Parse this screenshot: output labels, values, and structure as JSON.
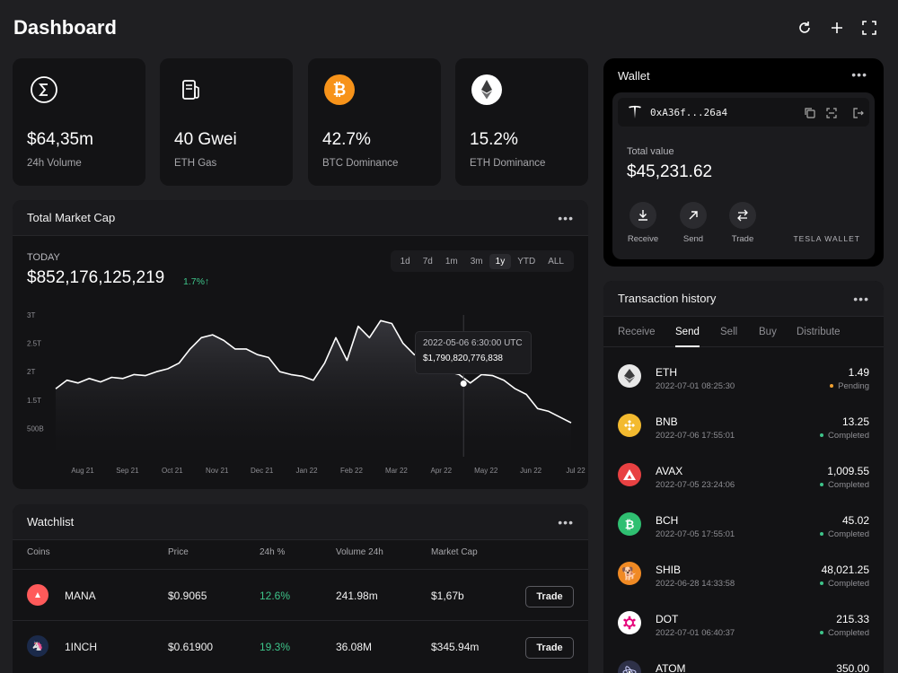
{
  "page": {
    "title": "Dashboard"
  },
  "top_actions": [
    {
      "name": "refresh-icon"
    },
    {
      "name": "plus-icon"
    },
    {
      "name": "fullscreen-icon"
    }
  ],
  "stats": [
    {
      "value": "$64,35m",
      "label": "24h Volume",
      "icon": "sigma-icon"
    },
    {
      "value": "40 Gwei",
      "label": "ETH Gas",
      "icon": "fuel-pump-icon"
    },
    {
      "value": "42.7%",
      "label": "BTC Dominance",
      "icon": "bitcoin-icon",
      "color": "#f7931a"
    },
    {
      "value": "15.2%",
      "label": "ETH Dominance",
      "icon": "ethereum-icon",
      "color": "#ffffff"
    }
  ],
  "market_cap": {
    "title": "Total Market Cap",
    "today_label": "TODAY",
    "value": "$852,176,125,219",
    "change": "1.7%↑",
    "ranges": [
      "1d",
      "7d",
      "1m",
      "3m",
      "1y",
      "YTD",
      "ALL"
    ],
    "active_range": "1y",
    "tooltip": {
      "date": "2022-05-06 6:30:00 UTC",
      "value": "$1,790,820,776,838"
    }
  },
  "chart_data": {
    "type": "area",
    "title": "",
    "xlabel": "",
    "ylabel": "",
    "y_ticks": [
      "3T",
      "2.5T",
      "2T",
      "1.5T",
      "500B"
    ],
    "x_ticks": [
      "Aug 21",
      "Sep 21",
      "Oct 21",
      "Nov 21",
      "Dec 21",
      "Jan 22",
      "Feb 22",
      "Mar 22",
      "Apr 22",
      "May 22",
      "Jun 22",
      "Jul 22"
    ],
    "ylim": [
      0.5,
      3.0
    ],
    "x": [
      0,
      0.25,
      0.5,
      0.75,
      1,
      1.25,
      1.5,
      1.75,
      2,
      2.25,
      2.5,
      2.75,
      3,
      3.25,
      3.5,
      3.75,
      4,
      4.25,
      4.5,
      4.75,
      5,
      5.25,
      5.5,
      5.75,
      6,
      6.25,
      6.5,
      6.75,
      7,
      7.25,
      7.5,
      7.75,
      8,
      8.25,
      8.5,
      8.75,
      9,
      9.25,
      9.5,
      9.75,
      10,
      10.25,
      10.5,
      10.75,
      11,
      11.25,
      11.5
    ],
    "values": [
      1.7,
      1.85,
      1.8,
      1.88,
      1.82,
      1.9,
      1.88,
      1.95,
      1.93,
      2.0,
      2.05,
      2.15,
      2.4,
      2.6,
      2.65,
      2.55,
      2.4,
      2.4,
      2.3,
      2.25,
      2.0,
      1.95,
      1.92,
      1.85,
      2.15,
      2.6,
      2.2,
      2.8,
      2.6,
      2.9,
      2.85,
      2.5,
      2.3,
      2.25,
      2.35,
      2.0,
      1.95,
      1.8,
      1.95,
      1.93,
      1.85,
      1.7,
      1.6,
      1.35,
      1.3,
      1.2,
      1.1
    ],
    "highlight": {
      "x": 9.1,
      "y": 1.79
    },
    "grid": false,
    "legend": "none"
  },
  "watchlist": {
    "title": "Watchlist",
    "columns": [
      "Coins",
      "Price",
      "24h %",
      "Volume 24h",
      "Market Cap"
    ],
    "rows": [
      {
        "coin": "MANA",
        "price": "$0.9065",
        "change": "12.6%",
        "volume": "241.98m",
        "cap": "$1,67b",
        "trade": "Trade",
        "color": "#ff5a5a"
      },
      {
        "coin": "1INCH",
        "price": "$0.61900",
        "change": "19.3%",
        "volume": "36.08M",
        "cap": "$345.94m",
        "trade": "Trade",
        "color": "#1b2a4a"
      }
    ]
  },
  "wallet": {
    "title": "Wallet",
    "address": "0xA36f...26a4",
    "total_label": "Total value",
    "total": "$45,231.62",
    "actions": [
      {
        "label": "Receive",
        "icon": "download-icon"
      },
      {
        "label": "Send",
        "icon": "arrow-up-right-icon"
      },
      {
        "label": "Trade",
        "icon": "swap-arrows-icon"
      }
    ],
    "brand": "TESLA WALLET"
  },
  "transactions": {
    "title": "Transaction history",
    "tabs": [
      "Receive",
      "Send",
      "Sell",
      "Buy",
      "Distribute"
    ],
    "active_tab": "Send",
    "items": [
      {
        "coin": "ETH",
        "date": "2022-07-01 08:25:30",
        "amount": "1.49",
        "status": "Pending",
        "color": "#e8e8e8",
        "status_color": "#f0a030"
      },
      {
        "coin": "BNB",
        "date": "2022-07-06 17:55:01",
        "amount": "13.25",
        "status": "Completed",
        "color": "#f3ba2f",
        "status_color": "#3ec48a"
      },
      {
        "coin": "AVAX",
        "date": "2022-07-05 23:24:06",
        "amount": "1,009.55",
        "status": "Completed",
        "color": "#e84142",
        "status_color": "#3ec48a"
      },
      {
        "coin": "BCH",
        "date": "2022-07-05 17:55:01",
        "amount": "45.02",
        "status": "Completed",
        "color": "#2fbf71",
        "status_color": "#3ec48a"
      },
      {
        "coin": "SHIB",
        "date": "2022-06-28 14:33:58",
        "amount": "48,021.25",
        "status": "Completed",
        "color": "#f08a24",
        "status_color": "#3ec48a"
      },
      {
        "coin": "DOT",
        "date": "2022-07-01 06:40:37",
        "amount": "215.33",
        "status": "Completed",
        "color": "#e6007a",
        "status_color": "#3ec48a"
      },
      {
        "coin": "ATOM",
        "date": "",
        "amount": "350.00",
        "status": "",
        "color": "#2e3148",
        "status_color": "#3ec48a"
      }
    ]
  }
}
